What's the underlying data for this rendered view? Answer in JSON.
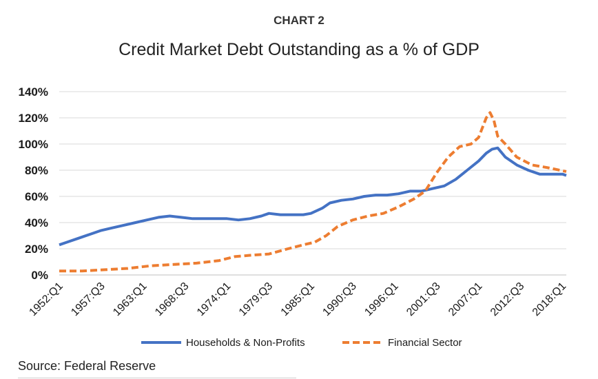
{
  "header": {
    "kicker": "CHART 2"
  },
  "footer": {
    "source": "Source: Federal Reserve"
  },
  "chart_data": {
    "type": "line",
    "title": "Credit Market Debt Outstanding as a % of GDP",
    "xlabel": "",
    "ylabel": "",
    "ylim": [
      0,
      140
    ],
    "y_ticks": [
      "0%",
      "20%",
      "40%",
      "60%",
      "80%",
      "100%",
      "120%",
      "140%"
    ],
    "y_tick_values": [
      0,
      20,
      40,
      60,
      80,
      100,
      120,
      140
    ],
    "x_ticks": [
      "1952:Q1",
      "1957:Q3",
      "1963:Q1",
      "1968:Q3",
      "1974:Q1",
      "1979:Q3",
      "1985:Q1",
      "1990:Q3",
      "1996:Q1",
      "2001:Q3",
      "2007:Q1",
      "2012:Q3",
      "2018:Q1"
    ],
    "x_tick_years": [
      1952.0,
      1957.5,
      1963.0,
      1968.5,
      1974.0,
      1979.5,
      1985.0,
      1990.5,
      1996.0,
      2001.5,
      2007.0,
      2012.5,
      2018.0
    ],
    "xlim": [
      1952.0,
      2018.5
    ],
    "grid": true,
    "legend_position": "bottom",
    "series": [
      {
        "name": "Households & Non-Profits",
        "color": "#4472c4",
        "style": "solid",
        "x": [
          1952.0,
          1953.0,
          1954.5,
          1956.0,
          1957.5,
          1959.0,
          1960.5,
          1962.0,
          1963.5,
          1965.0,
          1966.5,
          1968.0,
          1969.5,
          1971.0,
          1972.5,
          1974.0,
          1975.5,
          1977.0,
          1978.5,
          1979.5,
          1981.0,
          1982.5,
          1984.0,
          1985.0,
          1986.5,
          1987.5,
          1989.0,
          1990.5,
          1992.0,
          1993.5,
          1995.0,
          1996.5,
          1998.0,
          1999.5,
          2001.0,
          2002.5,
          2004.0,
          2005.5,
          2007.0,
          2008.0,
          2008.75,
          2009.5,
          2010.5,
          2012.0,
          2013.5,
          2015.0,
          2016.5,
          2018.0,
          2018.5
        ],
        "y": [
          23,
          25,
          28,
          31,
          34,
          36,
          38,
          40,
          42,
          44,
          45,
          44,
          43,
          43,
          43,
          43,
          42,
          43,
          45,
          47,
          46,
          46,
          46,
          47,
          51,
          55,
          57,
          58,
          60,
          61,
          61,
          62,
          64,
          64,
          66,
          68,
          73,
          80,
          87,
          93,
          96,
          97,
          90,
          84,
          80,
          77,
          77,
          77,
          76
        ]
      },
      {
        "name": "Financial Sector",
        "color": "#ed7d31",
        "style": "dashed",
        "x": [
          1952.0,
          1955.0,
          1958.0,
          1961.0,
          1964.0,
          1967.0,
          1970.0,
          1973.0,
          1975.0,
          1977.0,
          1979.5,
          1982.0,
          1984.0,
          1985.5,
          1987.0,
          1988.5,
          1990.5,
          1992.5,
          1994.5,
          1996.5,
          1998.5,
          2000.0,
          2001.5,
          2003.0,
          2004.5,
          2006.0,
          2007.0,
          2008.0,
          2008.5,
          2009.0,
          2009.5,
          2010.5,
          2012.0,
          2014.0,
          2016.0,
          2018.5
        ],
        "y": [
          3,
          3,
          4,
          5,
          7,
          8,
          9,
          11,
          14,
          15,
          16,
          20,
          23,
          25,
          30,
          37,
          42,
          45,
          47,
          52,
          58,
          64,
          78,
          90,
          98,
          100,
          105,
          120,
          124,
          118,
          106,
          100,
          90,
          84,
          82,
          79
        ]
      }
    ]
  }
}
